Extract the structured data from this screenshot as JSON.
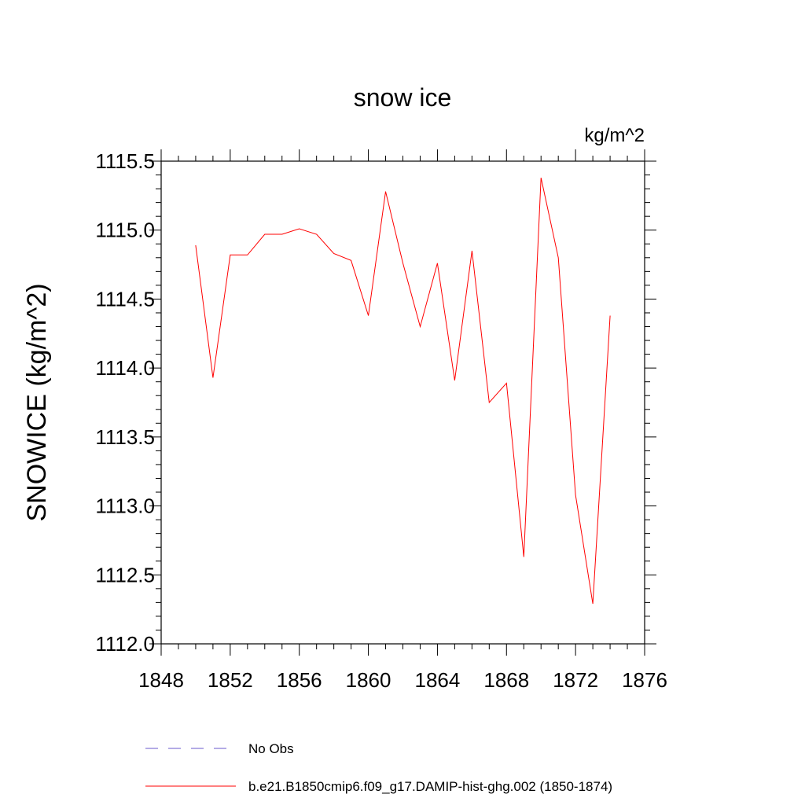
{
  "chart_data": {
    "type": "line",
    "title": "snow ice",
    "units_label": "kg/m^2",
    "ylabel": "SNOWICE  (kg/m^2)",
    "xlabel": "",
    "xlim": [
      1848,
      1876
    ],
    "ylim": [
      1112.0,
      1115.5
    ],
    "x_ticks": [
      "1848",
      "1852",
      "1856",
      "1860",
      "1864",
      "1868",
      "1872",
      "1876"
    ],
    "y_ticks": [
      "1112.0",
      "1112.5",
      "1113.0",
      "1113.5",
      "1114.0",
      "1114.5",
      "1115.0",
      "1115.5"
    ],
    "series": [
      {
        "name": "b.e21.B1850cmip6.f09_g17.DAMIP-hist-ghg.002 (1850-1874)",
        "color": "#ff0000",
        "style": "solid",
        "x": [
          1850,
          1851,
          1852,
          1853,
          1854,
          1855,
          1856,
          1857,
          1858,
          1859,
          1860,
          1861,
          1862,
          1863,
          1864,
          1865,
          1866,
          1867,
          1868,
          1869,
          1870,
          1871,
          1872,
          1873,
          1874
        ],
        "y": [
          1114.89,
          1113.93,
          1114.82,
          1114.82,
          1114.97,
          1114.97,
          1115.01,
          1114.97,
          1114.83,
          1114.78,
          1114.38,
          1115.28,
          1114.76,
          1114.3,
          1114.76,
          1113.91,
          1114.85,
          1113.75,
          1113.89,
          1112.63,
          1115.38,
          1114.8,
          1113.08,
          1112.29,
          1114.38
        ]
      }
    ],
    "legend": {
      "placement": "bottom",
      "entries": [
        {
          "label": "No Obs",
          "color": "#6a5acd",
          "style": "dashed"
        },
        {
          "label": "b.e21.B1850cmip6.f09_g17.DAMIP-hist-ghg.002 (1850-1874)",
          "color": "#ff0000",
          "style": "solid"
        }
      ]
    },
    "grid": false
  }
}
